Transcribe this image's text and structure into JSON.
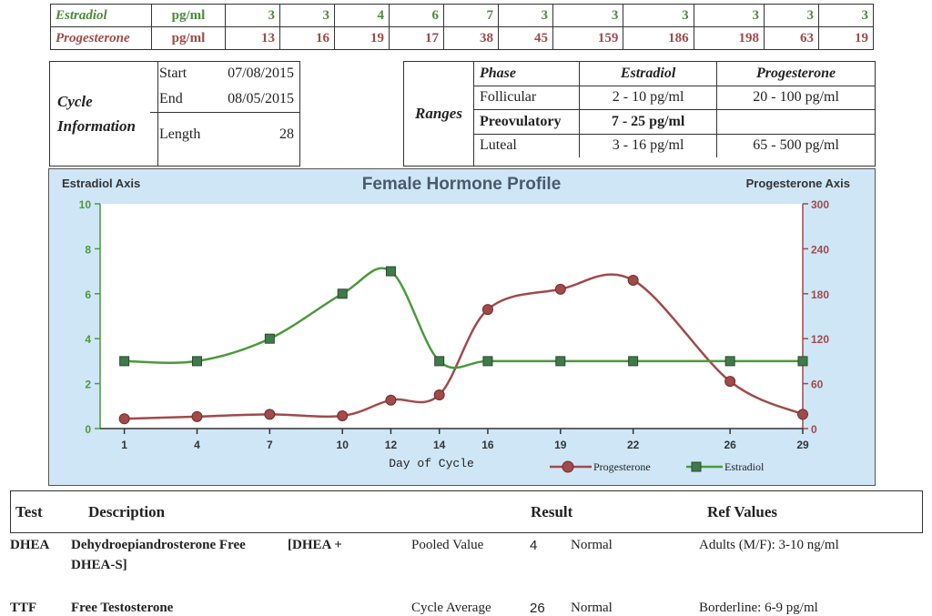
{
  "values_table": {
    "rows": [
      {
        "name": "Estradiol",
        "unit": "pg/ml",
        "values": [
          "3",
          "3",
          "4",
          "6",
          "7",
          "3",
          "3",
          "3",
          "3",
          "3",
          "3"
        ]
      },
      {
        "name": "Progesterone",
        "unit": "pg/ml",
        "values": [
          "13",
          "16",
          "19",
          "17",
          "38",
          "45",
          "159",
          "186",
          "198",
          "63",
          "19"
        ]
      }
    ]
  },
  "cycle": {
    "title_line1": "Cycle",
    "title_line2": "Information",
    "start_label": "Start",
    "start_value": "07/08/2015",
    "end_label": "End",
    "end_value": "08/05/2015",
    "length_label": "Length",
    "length_value": "28"
  },
  "ranges": {
    "label": "Ranges",
    "headers": [
      "Phase",
      "Estradiol",
      "Progesterone"
    ],
    "rows": [
      [
        "Follicular",
        "2 - 10 pg/ml",
        "20 - 100 pg/ml"
      ],
      [
        "Preovulatory",
        "7 - 25 pg/ml",
        ""
      ],
      [
        "Luteal",
        "3 - 16 pg/ml",
        "65 - 500 pg/ml"
      ]
    ]
  },
  "chart_data": {
    "type": "line",
    "title": "Female Hormone Profile",
    "left_axis_label": "Estradiol Axis",
    "right_axis_label": "Progesterone Axis",
    "xlabel": "Day of Cycle",
    "x": [
      1,
      4,
      7,
      10,
      12,
      14,
      16,
      19,
      22,
      26,
      29
    ],
    "left_ylim": [
      0,
      10
    ],
    "right_ylim": [
      0,
      300
    ],
    "left_ticks": [
      "0",
      "2",
      "4",
      "6",
      "8",
      "10"
    ],
    "right_ticks": [
      "0",
      "60",
      "120",
      "180",
      "240",
      "300"
    ],
    "series": [
      {
        "name": "Progesterone",
        "axis": "right",
        "color": "#a14a4a",
        "values": [
          13,
          16,
          19,
          17,
          38,
          45,
          159,
          186,
          198,
          63,
          19
        ]
      },
      {
        "name": "Estradiol",
        "axis": "left",
        "color": "#4a9a3a",
        "values": [
          3,
          3,
          4,
          6,
          7,
          3,
          3,
          3,
          3,
          3,
          3
        ]
      }
    ],
    "legend_placement": "bottom-right"
  },
  "results": {
    "headers": {
      "test": "Test",
      "description": "Description",
      "result": "Result",
      "ref": "Ref Values"
    },
    "rows": [
      {
        "test": "DHEA",
        "desc1": "Dehydroepiandrosterone Free",
        "desc_extra": "[DHEA +",
        "desc2": "DHEA-S]",
        "method": "Pooled Value",
        "value": "4",
        "status": "Normal",
        "ref": "Adults (M/F): 3-10 ng/ml"
      },
      {
        "test": "TTF",
        "desc1": "Free Testosterone",
        "method": "Cycle Average",
        "value": "26",
        "status": "Normal",
        "ref": "Borderline: 6-9 pg/ml"
      }
    ]
  }
}
